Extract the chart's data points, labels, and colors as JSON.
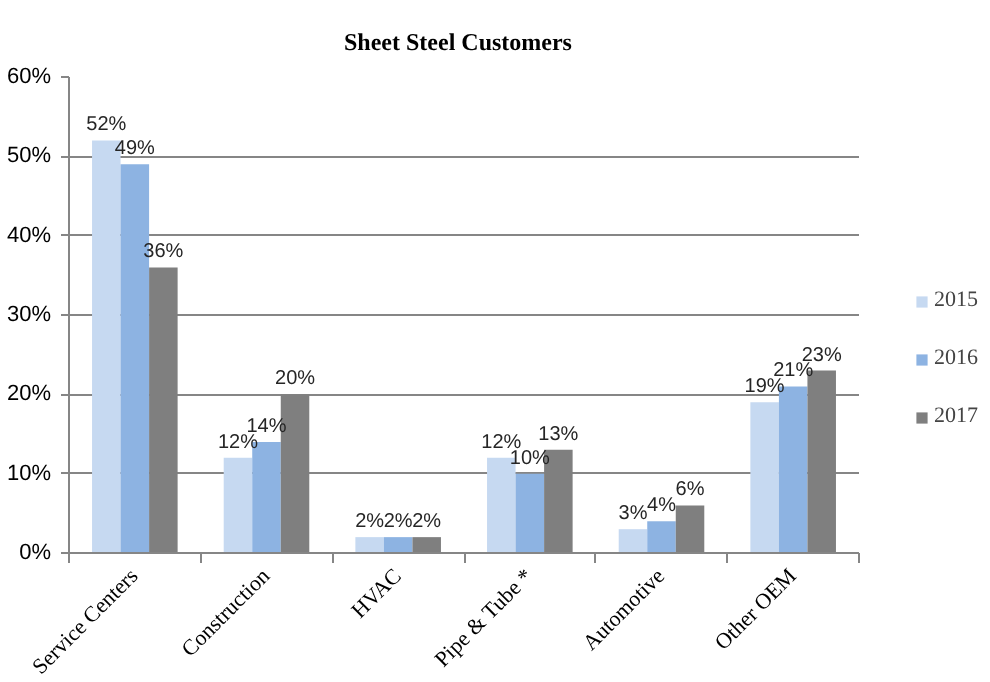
{
  "chart_data": {
    "type": "bar",
    "title": "Sheet Steel Customers",
    "categories": [
      "Service Centers",
      "Construction",
      "HVAC",
      "Pipe & Tube *",
      "Automotive",
      "Other OEM"
    ],
    "series": [
      {
        "name": "2015",
        "color": "#c6d9f1",
        "values": [
          52,
          12,
          2,
          12,
          3,
          19
        ],
        "value_labels": [
          "52%",
          "12%",
          "2%",
          "12%",
          "3%",
          "19%"
        ]
      },
      {
        "name": "2016",
        "color": "#8db3e2",
        "values": [
          49,
          14,
          2,
          10,
          4,
          21
        ],
        "value_labels": [
          "49%",
          "14%",
          "2%",
          "10%",
          "4%",
          "21%"
        ]
      },
      {
        "name": "2017",
        "color": "#7f7f7f",
        "values": [
          36,
          20,
          2,
          13,
          6,
          23
        ],
        "value_labels": [
          "36%",
          "20%",
          "2%",
          "13%",
          "6%",
          "23%"
        ]
      }
    ],
    "ylim": [
      0,
      60
    ],
    "yticks": [
      {
        "value": 0,
        "label": "0%"
      },
      {
        "value": 10,
        "label": "10%"
      },
      {
        "value": 20,
        "label": "20%"
      },
      {
        "value": 30,
        "label": "30%"
      },
      {
        "value": 40,
        "label": "40%"
      },
      {
        "value": 50,
        "label": "50%"
      },
      {
        "value": 60,
        "label": "60%"
      }
    ],
    "grid": "y",
    "legend": "right"
  }
}
